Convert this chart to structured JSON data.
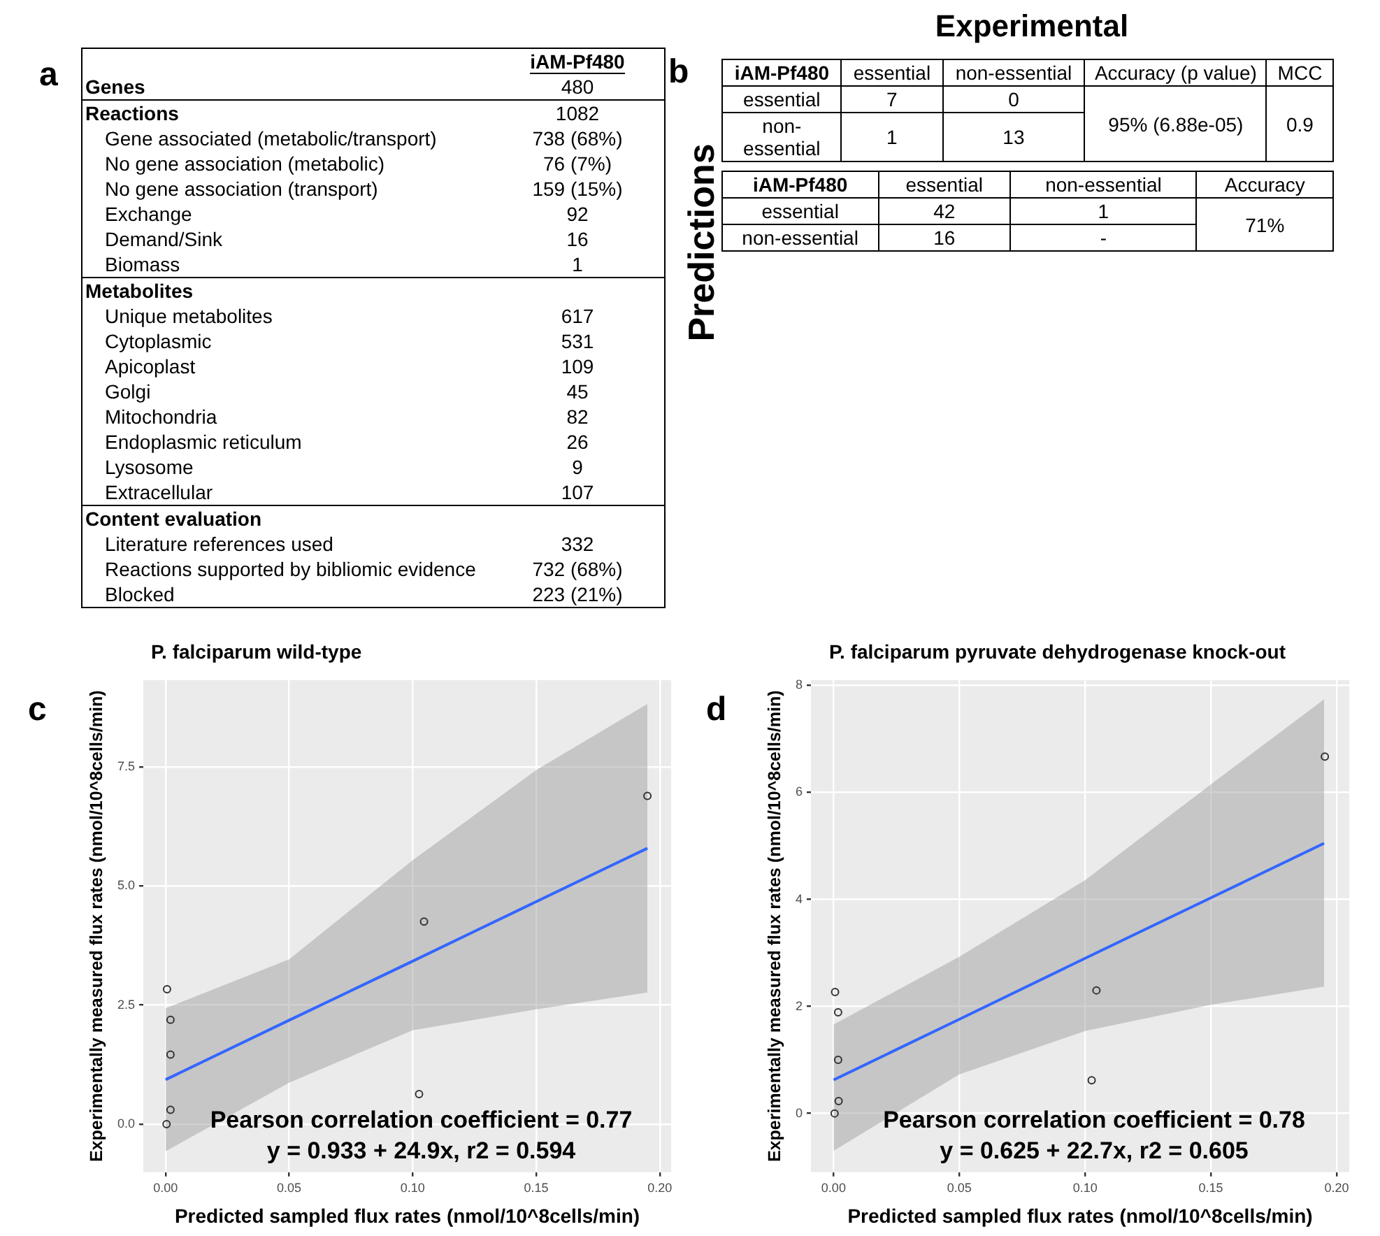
{
  "chart_data": [
    {
      "type": "other",
      "annotations": [
        "a"
      ],
      "categories": [
        "iAM-Pf480"
      ],
      "y_categories": [
        "Genes",
        "Reactions",
        "Gene associated (metabolic/transport)",
        "No gene association (metabolic)",
        "No gene association (transport)",
        "Exchange",
        "Demand/Sink",
        "Biomass",
        "Metabolites",
        "Unique metabolites",
        "Cytoplasmic",
        "Apicoplast",
        "Golgi",
        "Mitochondria",
        "Endoplasmic reticulum",
        "Lysosome",
        "Extracellular",
        "Content evaluation",
        "Literature references used",
        "Reactions supported by bibliomic evidence",
        "Blocked"
      ],
      "cell_labels": [
        [
          "480"
        ],
        [
          "1082"
        ],
        [
          "738 (68%)"
        ],
        [
          "76 (7%)"
        ],
        [
          "159 (15%)"
        ],
        [
          "92"
        ],
        [
          "16"
        ],
        [
          "1"
        ],
        [
          null
        ],
        [
          "617"
        ],
        [
          "531"
        ],
        [
          "109"
        ],
        [
          "45"
        ],
        [
          "82"
        ],
        [
          "26"
        ],
        [
          "9"
        ],
        [
          "107"
        ],
        [
          null
        ],
        [
          "332"
        ],
        [
          "732 (68%)"
        ],
        [
          "223 (21%)"
        ]
      ]
    },
    {
      "type": "other",
      "title": "Experimental",
      "ylabel": "Predictions",
      "annotations": [
        "b"
      ],
      "categories": [
        "iAM-Pf480",
        "essential",
        "non-essential",
        "Accuracy (p value)",
        "MCC"
      ],
      "y_categories": [
        "essential",
        "non-essential"
      ],
      "cell_labels": [
        [
          "7",
          "0",
          "95% (6.88e-05)",
          "0.9"
        ],
        [
          "1",
          "13",
          null,
          null
        ]
      ]
    },
    {
      "type": "other",
      "categories": [
        "iAM-Pf480",
        "essential",
        "non-essential",
        "Accuracy"
      ],
      "y_categories": [
        "essential",
        "non-essential"
      ],
      "cell_labels": [
        [
          "42",
          "1",
          "71%"
        ],
        [
          "16",
          "-",
          null
        ]
      ]
    },
    {
      "type": "scatter",
      "title": "P. falciparum wild-type",
      "xlabel": "Predicted sampled flux rates (nmol/10^8cells/min)",
      "ylabel": "Experimentally measured flux rates (nmol/10^8cells/min)",
      "annotations": [
        "c",
        "Pearson correlation coefficient = 0.77",
        "y = 0.933 + 24.9x, r2 = 0.594"
      ],
      "xlim": [
        -0.009,
        0.2046
      ],
      "ylim": [
        -1.01,
        9.32
      ],
      "xticks": [
        {
          "value": 0,
          "label": "0.00"
        },
        {
          "value": 0.05,
          "label": "0.05"
        },
        {
          "value": 0.1,
          "label": "0.10"
        },
        {
          "value": 0.15,
          "label": "0.15"
        },
        {
          "value": 0.2,
          "label": "0.20"
        }
      ],
      "yticks": [
        {
          "value": 0,
          "label": "0.0"
        },
        {
          "value": 2.5,
          "label": "2.5"
        },
        {
          "value": 5,
          "label": "5.0"
        },
        {
          "value": 7.5,
          "label": "7.5"
        }
      ],
      "grid": true,
      "series": [
        {
          "type": "scatter",
          "marker": "circle",
          "color": "#333333",
          "x": [
            0.0006,
            0.002,
            0.002,
            0.002,
            0.0004,
            0.1046,
            0.1026,
            0.195
          ],
          "values": [
            2.83,
            2.19,
            1.46,
            0.3,
            0,
            4.25,
            0.63,
            6.89
          ]
        },
        {
          "type": "line",
          "marker": "none",
          "color": "#3366ff",
          "x": [
            0,
            0.05,
            0.1,
            0.15,
            0.195
          ],
          "values": [
            0.933,
            2.18,
            3.42,
            4.67,
            5.79
          ],
          "lower": [
            -0.57,
            0.87,
            1.97,
            2.41,
            2.76
          ],
          "upper": [
            2.43,
            3.46,
            5.54,
            7.43,
            8.82
          ]
        }
      ]
    },
    {
      "type": "scatter",
      "title": "P. falciparum pyruvate dehydrogenase knock-out",
      "xlabel": "Predicted sampled flux rates (nmol/10^8cells/min)",
      "ylabel": "Experimentally measured flux rates (nmol/10^8cells/min)",
      "annotations": [
        "d",
        "Pearson correlation coefficient = 0.78",
        "y = 0.625 + 22.7x, r2 = 0.605"
      ],
      "xlim": [
        -0.009,
        0.205
      ],
      "ylim": [
        -1.1,
        8.1
      ],
      "xticks": [
        {
          "value": 0,
          "label": "0.00"
        },
        {
          "value": 0.05,
          "label": "0.05"
        },
        {
          "value": 0.1,
          "label": "0.10"
        },
        {
          "value": 0.15,
          "label": "0.15"
        },
        {
          "value": 0.2,
          "label": "0.20"
        }
      ],
      "yticks": [
        0,
        2,
        4,
        6,
        8
      ],
      "grid": true,
      "series": [
        {
          "type": "scatter",
          "marker": "circle",
          "color": "#333333",
          "x": [
            0.0004,
            0.0006,
            0.0018,
            0.0018,
            0.002,
            0.1045,
            0.1026,
            0.1953
          ],
          "values": [
            0,
            2.27,
            1.89,
            1.0,
            0.23,
            2.3,
            0.62,
            6.67
          ]
        },
        {
          "type": "line",
          "marker": "none",
          "color": "#3366ff",
          "x": [
            0,
            0.05,
            0.1,
            0.15,
            0.195
          ],
          "values": [
            0.625,
            1.76,
            2.9,
            4.03,
            5.05
          ],
          "lower": [
            -0.7,
            0.73,
            1.54,
            2.03,
            2.37
          ],
          "upper": [
            1.66,
            2.93,
            4.36,
            6.15,
            7.74
          ]
        }
      ]
    }
  ]
}
